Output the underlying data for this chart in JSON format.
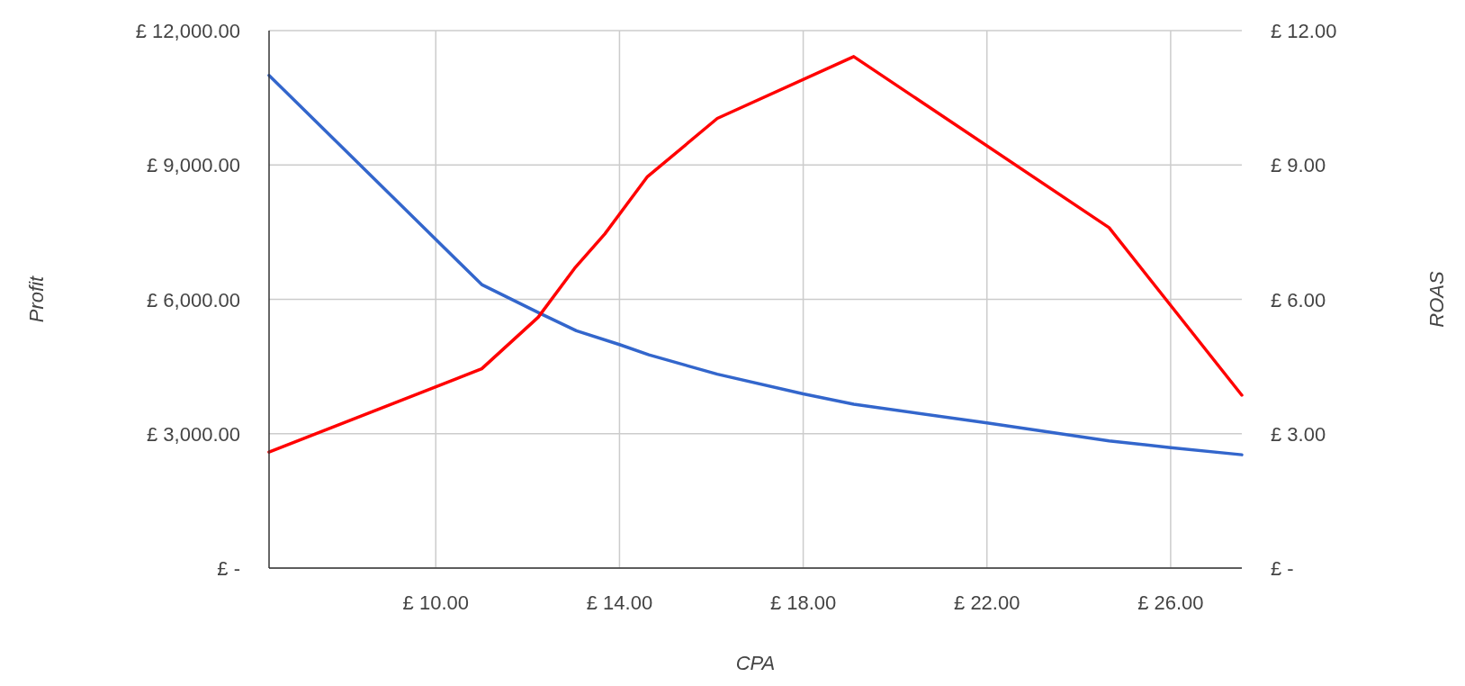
{
  "chart_data": {
    "type": "line",
    "xlabel": "CPA",
    "ylabel": "Profit",
    "y2label": "ROAS",
    "grid": true,
    "line_style": "solid",
    "marker": "none",
    "xlim": [
      6.37,
      27.55
    ],
    "xticks": [
      {
        "value": 10,
        "label": "£ 10.00"
      },
      {
        "value": 14,
        "label": "£ 14.00"
      },
      {
        "value": 18,
        "label": "£ 18.00"
      },
      {
        "value": 22,
        "label": "£ 22.00"
      },
      {
        "value": 26,
        "label": "£ 26.00"
      }
    ],
    "ylim": [
      0,
      12000
    ],
    "yticks": [
      {
        "value": 0,
        "label": "£ -"
      },
      {
        "value": 3000,
        "label": "£ 3,000.00"
      },
      {
        "value": 6000,
        "label": "£ 6,000.00"
      },
      {
        "value": 9000,
        "label": "£ 9,000.00"
      },
      {
        "value": 12000,
        "label": "£ 12,000.00"
      }
    ],
    "y2lim": [
      0,
      12
    ],
    "y2ticks": [
      {
        "value": 0,
        "label": "£ -"
      },
      {
        "value": 3,
        "label": "£ 3.00"
      },
      {
        "value": 6,
        "label": "£ 6.00"
      },
      {
        "value": 9,
        "label": "£ 9.00"
      },
      {
        "value": 12,
        "label": "£ 12.00"
      }
    ],
    "series": [
      {
        "color": "#3366cc",
        "x": [
          6.37,
          11.0,
          12.28,
          13.06,
          14.0,
          14.64,
          16.13,
          18.0,
          19.1,
          22.0,
          24.66,
          26.0,
          27.55
        ],
        "values": [
          11000,
          6330,
          5680,
          5300,
          4990,
          4760,
          4330,
          3890,
          3660,
          3240,
          2840,
          2690,
          2530
        ]
      },
      {
        "color": "#ff0000",
        "axis": "y2",
        "x": [
          6.37,
          11.0,
          12.23,
          13.02,
          13.68,
          14.6,
          16.13,
          19.1,
          24.66,
          27.55
        ],
        "values": [
          2.59,
          4.45,
          5.6,
          6.69,
          7.46,
          8.73,
          10.04,
          11.42,
          7.6,
          3.86
        ]
      }
    ]
  }
}
